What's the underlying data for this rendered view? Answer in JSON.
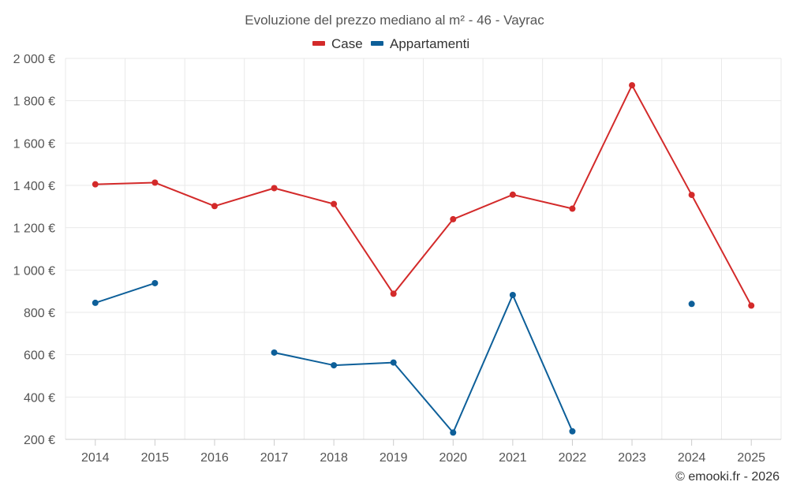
{
  "chart_data": {
    "type": "line",
    "title": "Evoluzione del prezzo mediano al m² - 46 - Vayrac",
    "categories": [
      "2014",
      "2015",
      "2016",
      "2017",
      "2018",
      "2019",
      "2020",
      "2021",
      "2022",
      "2023",
      "2024",
      "2025"
    ],
    "series": [
      {
        "name": "Case",
        "color": "#d32a2a",
        "values": [
          1405,
          1413,
          1302,
          1387,
          1312,
          888,
          1240,
          1356,
          1290,
          1873,
          1355,
          832
        ]
      },
      {
        "name": "Appartamenti",
        "color": "#0d5f99",
        "values": [
          845,
          938,
          null,
          610,
          550,
          563,
          232,
          882,
          238,
          null,
          840,
          null
        ]
      }
    ],
    "ylim": [
      200,
      2000
    ],
    "yticks": [
      200,
      400,
      600,
      800,
      1000,
      1200,
      1400,
      1600,
      1800,
      2000
    ],
    "ytick_labels": [
      "200 €",
      "400 €",
      "600 €",
      "800 €",
      "1 000 €",
      "1 200 €",
      "1 400 €",
      "1 600 €",
      "1 800 €",
      "2 000 €"
    ],
    "xlabel": "",
    "ylabel": "",
    "grid": true,
    "legend": "top-center"
  },
  "credit": "© emooki.fr - 2026"
}
